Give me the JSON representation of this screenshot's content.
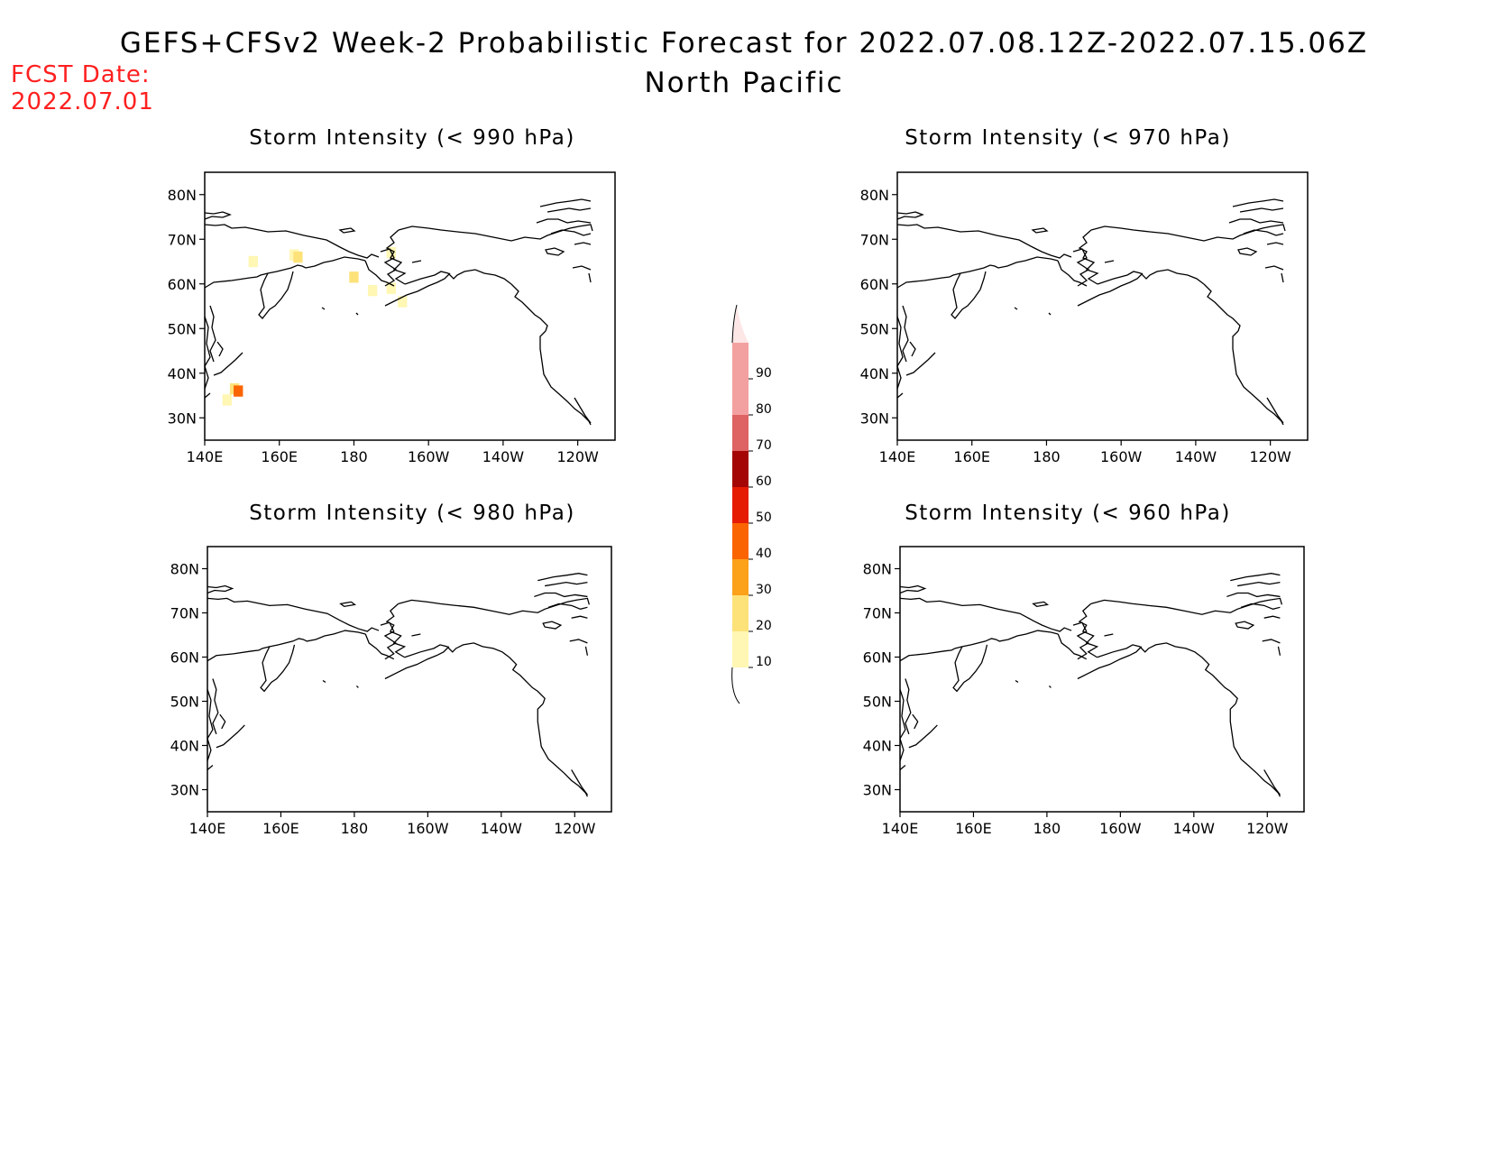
{
  "header": {
    "title": "GEFS+CFSv2 Week-2 Probabilistic Forecast for 2022.07.08.12Z-2022.07.15.06Z",
    "region": "North Pacific",
    "fcst_label": "FCST Date:",
    "fcst_date": "2022.07.01"
  },
  "panels": [
    {
      "title": "Storm Intensity (< 990 hPa)"
    },
    {
      "title": "Storm Intensity (< 970 hPa)"
    },
    {
      "title": "Storm Intensity (< 980 hPa)"
    },
    {
      "title": "Storm Intensity (< 960 hPa)"
    }
  ],
  "axes": {
    "lon_ticks": [
      "140E",
      "160E",
      "180",
      "160W",
      "140W",
      "120W"
    ],
    "lat_ticks": [
      "80N",
      "70N",
      "60N",
      "50N",
      "40N",
      "30N"
    ]
  },
  "colorbar": {
    "levels": [
      "10",
      "20",
      "30",
      "40",
      "50",
      "60",
      "70",
      "80",
      "90"
    ],
    "colors": [
      "#fff7b3",
      "#fde27a",
      "#fba11a",
      "#fb6402",
      "#e61b03",
      "#a30604",
      "#de6363",
      "#f3a0a0",
      "#fde6e6"
    ]
  },
  "chart_data": {
    "type": "heatmap",
    "units": "probability (%)",
    "lon_range": [
      140,
      250
    ],
    "lat_range": [
      25,
      85
    ],
    "cells": [
      {
        "panel": 0,
        "lon": 153,
        "lat": 65,
        "value": 10
      },
      {
        "panel": 0,
        "lon": 164,
        "lat": 66.5,
        "value": 10
      },
      {
        "panel": 0,
        "lon": 165,
        "lat": 66,
        "value": 20
      },
      {
        "panel": 0,
        "lon": 180,
        "lat": 61.5,
        "value": 20
      },
      {
        "panel": 0,
        "lon": 185,
        "lat": 58.5,
        "value": 10
      },
      {
        "panel": 0,
        "lon": 190,
        "lat": 67,
        "value": 10
      },
      {
        "panel": 0,
        "lon": 190,
        "lat": 59,
        "value": 10
      },
      {
        "panel": 0,
        "lon": 193,
        "lat": 56,
        "value": 10
      },
      {
        "panel": 0,
        "lon": 146,
        "lat": 34,
        "value": 10
      },
      {
        "panel": 0,
        "lon": 148,
        "lat": 36.5,
        "value": 20
      },
      {
        "panel": 0,
        "lon": 149,
        "lat": 36,
        "value": 40
      }
    ]
  }
}
